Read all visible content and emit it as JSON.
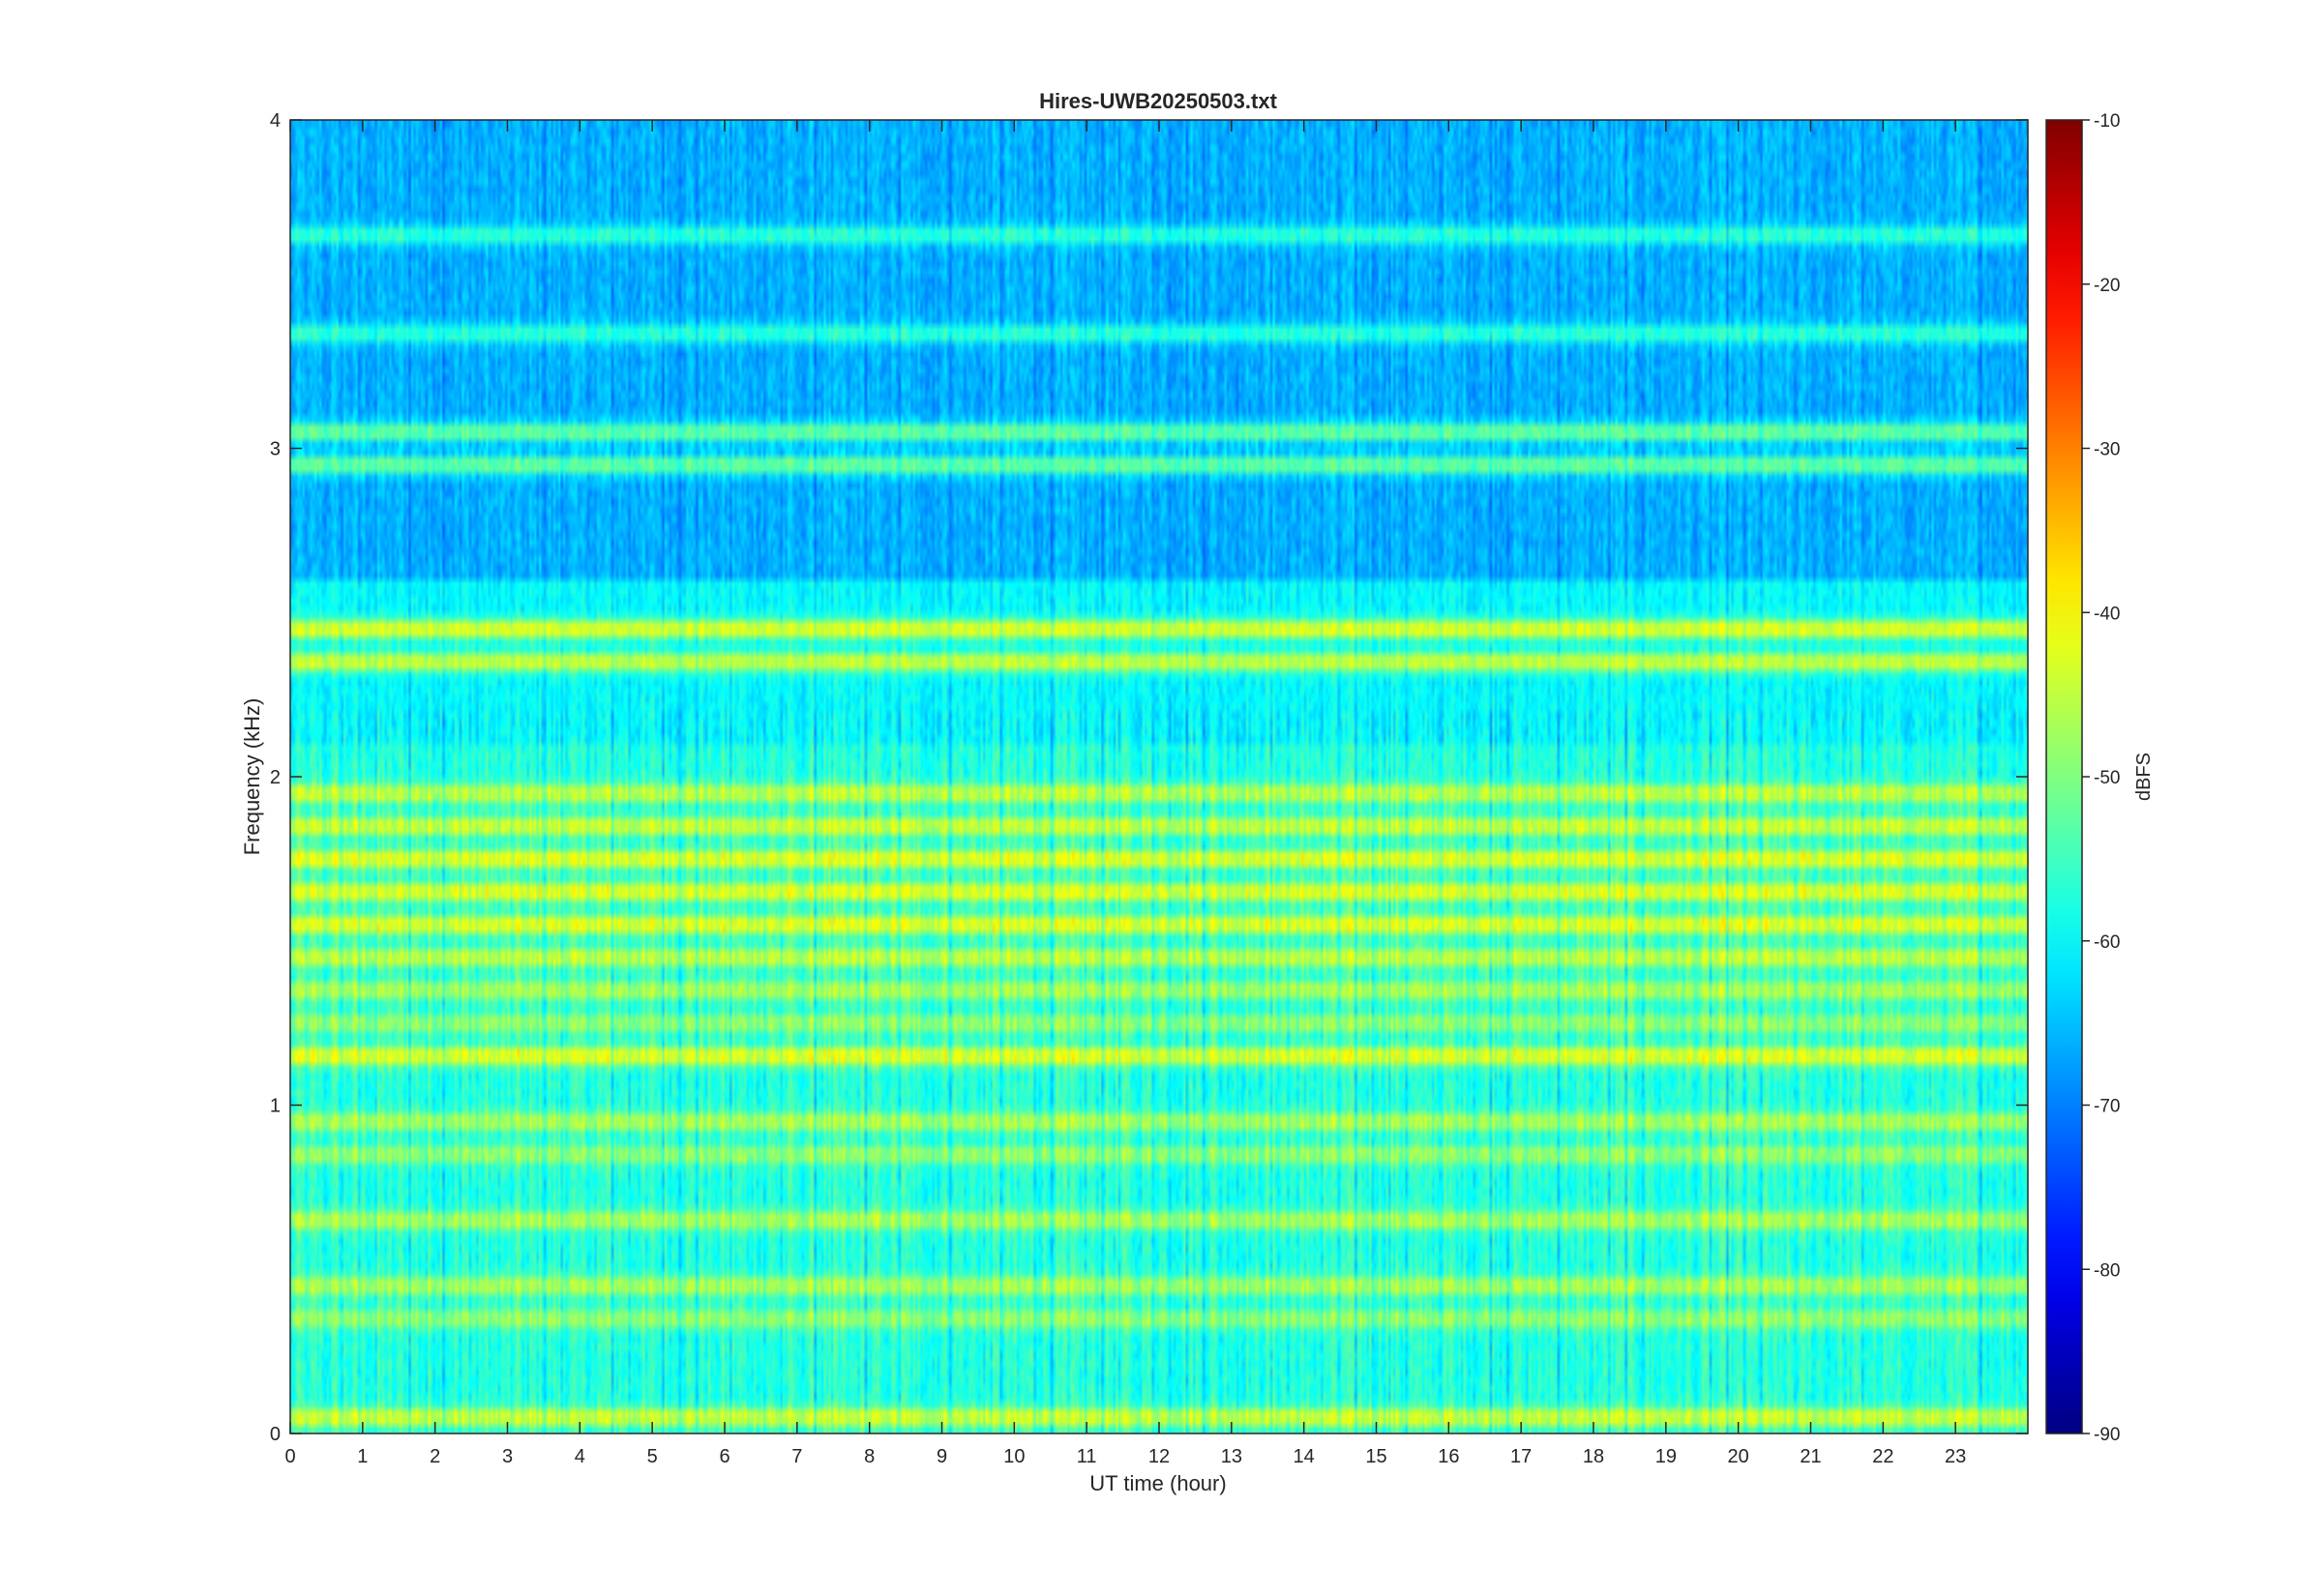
{
  "chart_data": {
    "type": "heatmap",
    "title": "Hires-UWB20250503.txt",
    "xlabel": "UT time (hour)",
    "ylabel": "Frequency (kHz)",
    "xlim": [
      0,
      24
    ],
    "ylim": [
      0,
      4
    ],
    "x_ticks": [
      0,
      1,
      2,
      3,
      4,
      5,
      6,
      7,
      8,
      9,
      10,
      11,
      12,
      13,
      14,
      15,
      16,
      17,
      18,
      19,
      20,
      21,
      22,
      23
    ],
    "y_ticks": [
      0,
      1,
      2,
      3,
      4
    ],
    "colorbar": {
      "label": "dBFS",
      "range": [
        -90,
        -10
      ],
      "ticks": [
        -10,
        -20,
        -30,
        -40,
        -50,
        -60,
        -70,
        -80,
        -90
      ],
      "colormap": "jet"
    },
    "grid": false,
    "bands": [
      {
        "freq_khz": 0.05,
        "level_dbfs": -42
      },
      {
        "freq_khz": 0.35,
        "level_dbfs": -47
      },
      {
        "freq_khz": 0.45,
        "level_dbfs": -45
      },
      {
        "freq_khz": 0.65,
        "level_dbfs": -45
      },
      {
        "freq_khz": 0.85,
        "level_dbfs": -47
      },
      {
        "freq_khz": 0.95,
        "level_dbfs": -45
      },
      {
        "freq_khz": 1.15,
        "level_dbfs": -40
      },
      {
        "freq_khz": 1.25,
        "level_dbfs": -47
      },
      {
        "freq_khz": 1.35,
        "level_dbfs": -45
      },
      {
        "freq_khz": 1.45,
        "level_dbfs": -43
      },
      {
        "freq_khz": 1.55,
        "level_dbfs": -40
      },
      {
        "freq_khz": 1.65,
        "level_dbfs": -40
      },
      {
        "freq_khz": 1.75,
        "level_dbfs": -40
      },
      {
        "freq_khz": 1.85,
        "level_dbfs": -42
      },
      {
        "freq_khz": 1.95,
        "level_dbfs": -43
      },
      {
        "freq_khz": 2.35,
        "level_dbfs": -42
      },
      {
        "freq_khz": 2.45,
        "level_dbfs": -40
      },
      {
        "freq_khz": 2.95,
        "level_dbfs": -50
      },
      {
        "freq_khz": 3.05,
        "level_dbfs": -50
      },
      {
        "freq_khz": 3.35,
        "level_dbfs": -55
      },
      {
        "freq_khz": 3.65,
        "level_dbfs": -55
      }
    ]
  }
}
